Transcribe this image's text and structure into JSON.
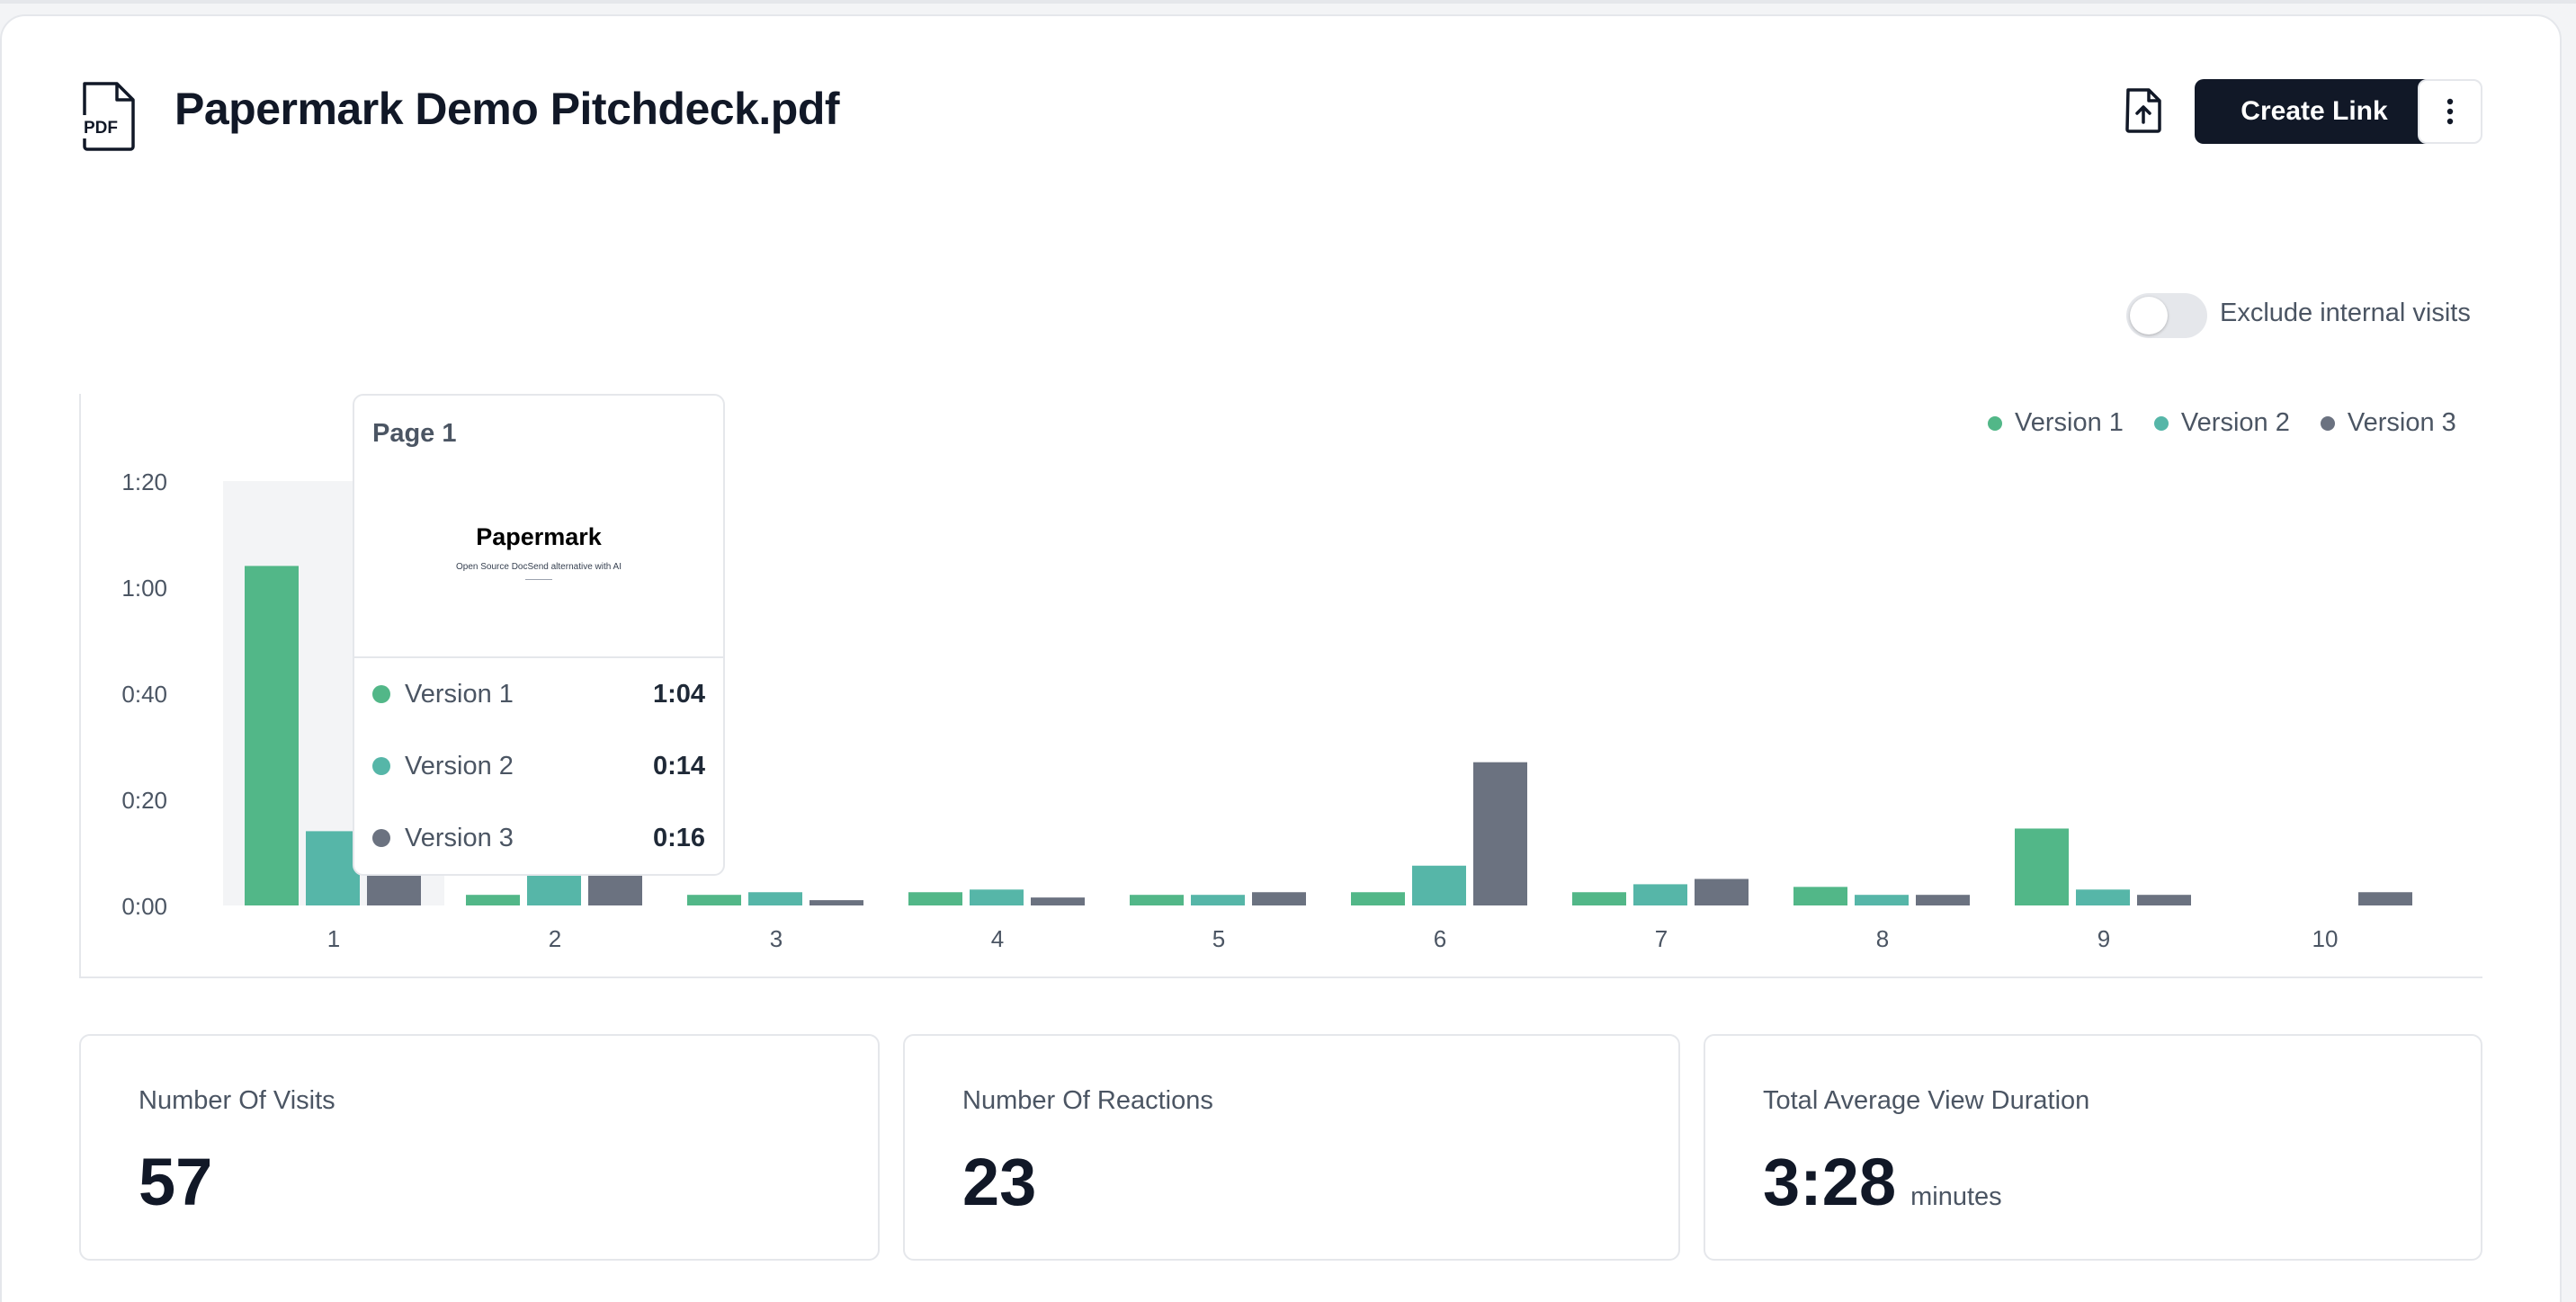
{
  "header": {
    "icon": "pdf-file-icon",
    "title": "Papermark Demo Pitchdeck.pdf",
    "upload_icon": "file-upload-icon",
    "create_link_label": "Create Link",
    "more_icon": "vertical-dots-icon"
  },
  "filter": {
    "toggle_on": false,
    "label": "Exclude internal visits"
  },
  "colors": {
    "version_1": "#52b788",
    "version_2": "#56b6a8",
    "version_3": "#6b7280",
    "button_dark": "#111827"
  },
  "chart_data": {
    "type": "bar",
    "categories": [
      "1",
      "2",
      "3",
      "4",
      "5",
      "6",
      "7",
      "8",
      "9",
      "10"
    ],
    "series": [
      {
        "name": "Version 1",
        "values": [
          64,
          2,
          2,
          2.5,
          2,
          2.5,
          2.5,
          3.5,
          14.5,
          0
        ]
      },
      {
        "name": "Version 2",
        "values": [
          14,
          6,
          2.5,
          3,
          2,
          7.5,
          4,
          2,
          3,
          0
        ]
      },
      {
        "name": "Version 3",
        "values": [
          16,
          6,
          1,
          1.5,
          2.5,
          27,
          5,
          2,
          2,
          2.5
        ]
      }
    ],
    "yticks": [
      "0:00",
      "0:20",
      "0:40",
      "1:00",
      "1:20"
    ],
    "ylim": [
      0,
      80
    ],
    "legend_position": "top-right",
    "highlighted_category": "1"
  },
  "tooltip": {
    "title": "Page 1",
    "thumbnail": {
      "brand": "Papermark",
      "subtitle": "Open Source DocSend alternative with AI"
    },
    "rows": [
      {
        "name": "Version 1",
        "value": "1:04"
      },
      {
        "name": "Version 2",
        "value": "0:14"
      },
      {
        "name": "Version 3",
        "value": "0:16"
      }
    ]
  },
  "stats": [
    {
      "label": "Number Of Visits",
      "value": "57",
      "unit": ""
    },
    {
      "label": "Number Of Reactions",
      "value": "23",
      "unit": ""
    },
    {
      "label": "Total Average View Duration",
      "value": "3:28",
      "unit": "minutes"
    }
  ]
}
